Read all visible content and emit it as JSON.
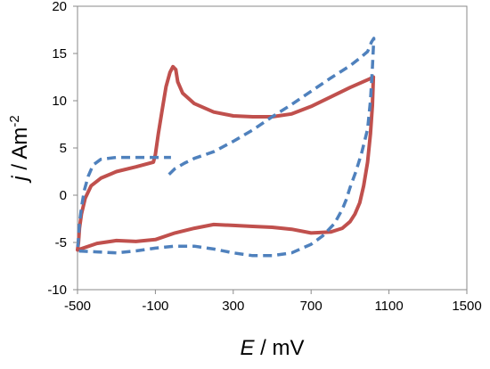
{
  "chart_data": {
    "type": "line",
    "xlabel": {
      "italic": "E",
      "rest": " / mV"
    },
    "ylabel": {
      "italic": "j",
      "rest": " / Am",
      "sup": "-2"
    },
    "xlim": [
      -500,
      1500
    ],
    "ylim": [
      -10,
      20
    ],
    "xticks": [
      -500,
      -100,
      300,
      700,
      1100,
      1500
    ],
    "yticks": [
      -10,
      -5,
      0,
      5,
      10,
      15,
      20
    ],
    "grid": false,
    "legend": "none",
    "series": [
      {
        "color": "#c0504d",
        "style": "solid",
        "points": [
          [
            1020,
            12.5
          ],
          [
            1015,
            9.5
          ],
          [
            1005,
            6.5
          ],
          [
            990,
            3.5
          ],
          [
            970,
            1.0
          ],
          [
            950,
            -0.8
          ],
          [
            925,
            -2.0
          ],
          [
            900,
            -2.8
          ],
          [
            860,
            -3.5
          ],
          [
            800,
            -3.9
          ],
          [
            700,
            -4.0
          ],
          [
            600,
            -3.6
          ],
          [
            500,
            -3.4
          ],
          [
            400,
            -3.3
          ],
          [
            300,
            -3.2
          ],
          [
            200,
            -3.1
          ],
          [
            100,
            -3.5
          ],
          [
            0,
            -4.0
          ],
          [
            -100,
            -4.7
          ],
          [
            -200,
            -4.9
          ],
          [
            -300,
            -4.8
          ],
          [
            -400,
            -5.1
          ],
          [
            -500,
            -5.8
          ],
          [
            -495,
            -5.0
          ],
          [
            -490,
            -3.5
          ],
          [
            -480,
            -2.0
          ],
          [
            -460,
            -0.3
          ],
          [
            -430,
            1.0
          ],
          [
            -380,
            1.8
          ],
          [
            -300,
            2.5
          ],
          [
            -200,
            3.0
          ],
          [
            -110,
            3.5
          ],
          [
            -100,
            4.3
          ],
          [
            -85,
            6.5
          ],
          [
            -65,
            9.0
          ],
          [
            -45,
            11.5
          ],
          [
            -25,
            13.0
          ],
          [
            -10,
            13.6
          ],
          [
            5,
            13.3
          ],
          [
            15,
            12.0
          ],
          [
            40,
            10.8
          ],
          [
            100,
            9.7
          ],
          [
            200,
            8.8
          ],
          [
            300,
            8.4
          ],
          [
            400,
            8.3
          ],
          [
            500,
            8.3
          ],
          [
            600,
            8.6
          ],
          [
            700,
            9.4
          ],
          [
            800,
            10.4
          ],
          [
            900,
            11.4
          ],
          [
            1000,
            12.3
          ],
          [
            1020,
            12.5
          ]
        ]
      },
      {
        "color": "#4f81bd",
        "style": "dashed",
        "points": [
          [
            -30,
            2.2
          ],
          [
            0,
            2.8
          ],
          [
            50,
            3.4
          ],
          [
            100,
            3.9
          ],
          [
            200,
            4.6
          ],
          [
            300,
            5.7
          ],
          [
            400,
            6.9
          ],
          [
            500,
            8.3
          ],
          [
            600,
            9.6
          ],
          [
            700,
            11.0
          ],
          [
            800,
            12.4
          ],
          [
            900,
            13.7
          ],
          [
            950,
            14.5
          ],
          [
            990,
            15.2
          ],
          [
            1010,
            16.2
          ],
          [
            1022,
            16.6
          ],
          [
            1015,
            13.5
          ],
          [
            1005,
            10.0
          ],
          [
            990,
            7.0
          ],
          [
            960,
            4.5
          ],
          [
            930,
            2.5
          ],
          [
            900,
            0.8
          ],
          [
            880,
            -0.5
          ],
          [
            860,
            -1.5
          ],
          [
            820,
            -3.0
          ],
          [
            760,
            -4.3
          ],
          [
            700,
            -5.2
          ],
          [
            600,
            -6.1
          ],
          [
            500,
            -6.4
          ],
          [
            400,
            -6.4
          ],
          [
            300,
            -6.1
          ],
          [
            200,
            -5.7
          ],
          [
            100,
            -5.4
          ],
          [
            0,
            -5.4
          ],
          [
            -100,
            -5.6
          ],
          [
            -200,
            -5.9
          ],
          [
            -300,
            -6.1
          ],
          [
            -400,
            -6.0
          ],
          [
            -500,
            -5.9
          ],
          [
            -495,
            -4.5
          ],
          [
            -490,
            -3.0
          ],
          [
            -480,
            -1.3
          ],
          [
            -465,
            0.5
          ],
          [
            -445,
            2.0
          ],
          [
            -420,
            3.2
          ],
          [
            -380,
            3.8
          ],
          [
            -300,
            4.0
          ],
          [
            -200,
            4.0
          ],
          [
            -100,
            4.0
          ],
          [
            -20,
            4.0
          ]
        ]
      }
    ]
  }
}
